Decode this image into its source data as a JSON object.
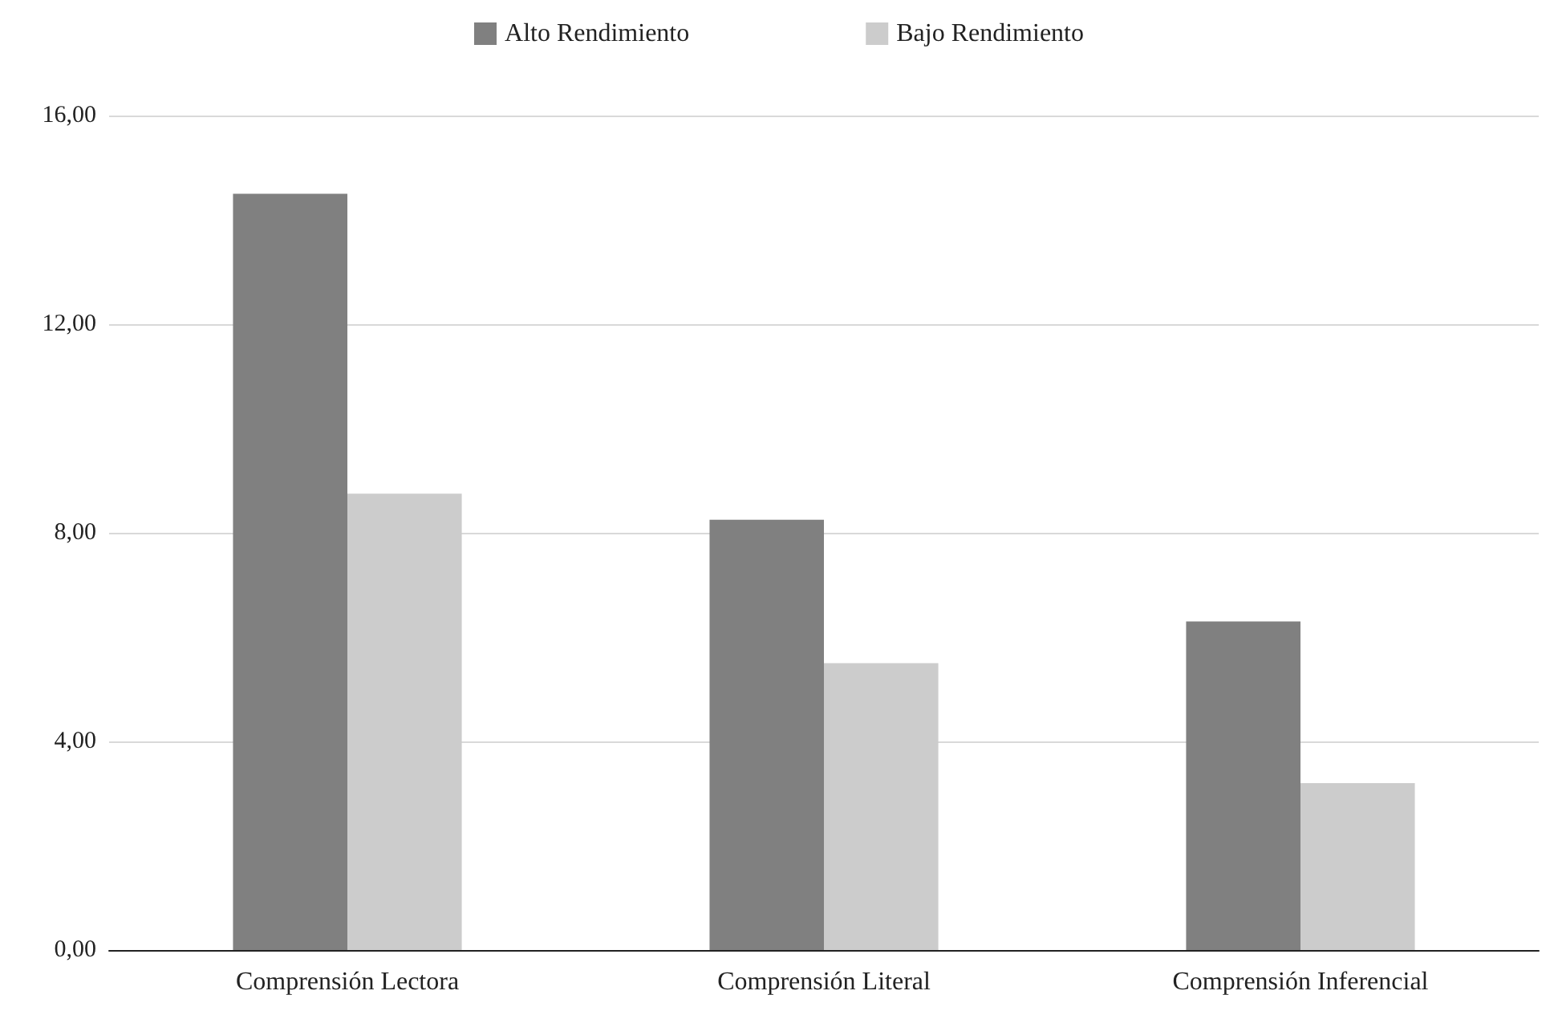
{
  "chart_data": {
    "type": "bar",
    "categories": [
      "Comprensión Lectora",
      "Comprensión Literal",
      "Comprensión Inferencial"
    ],
    "series": [
      {
        "name": "Alto Rendimiento",
        "color": "#808080",
        "values": [
          14.5,
          8.25,
          6.3
        ]
      },
      {
        "name": "Bajo Rendimiento",
        "color": "#cccccc",
        "values": [
          8.75,
          5.5,
          3.2
        ]
      }
    ],
    "ylim": [
      0,
      16
    ],
    "yticks": [
      {
        "value": 0,
        "label": "0,00"
      },
      {
        "value": 4,
        "label": "4,00"
      },
      {
        "value": 8,
        "label": "8,00"
      },
      {
        "value": 12,
        "label": "12,00"
      },
      {
        "value": 16,
        "label": "16,00"
      }
    ],
    "grid": "y",
    "legend": "top"
  }
}
